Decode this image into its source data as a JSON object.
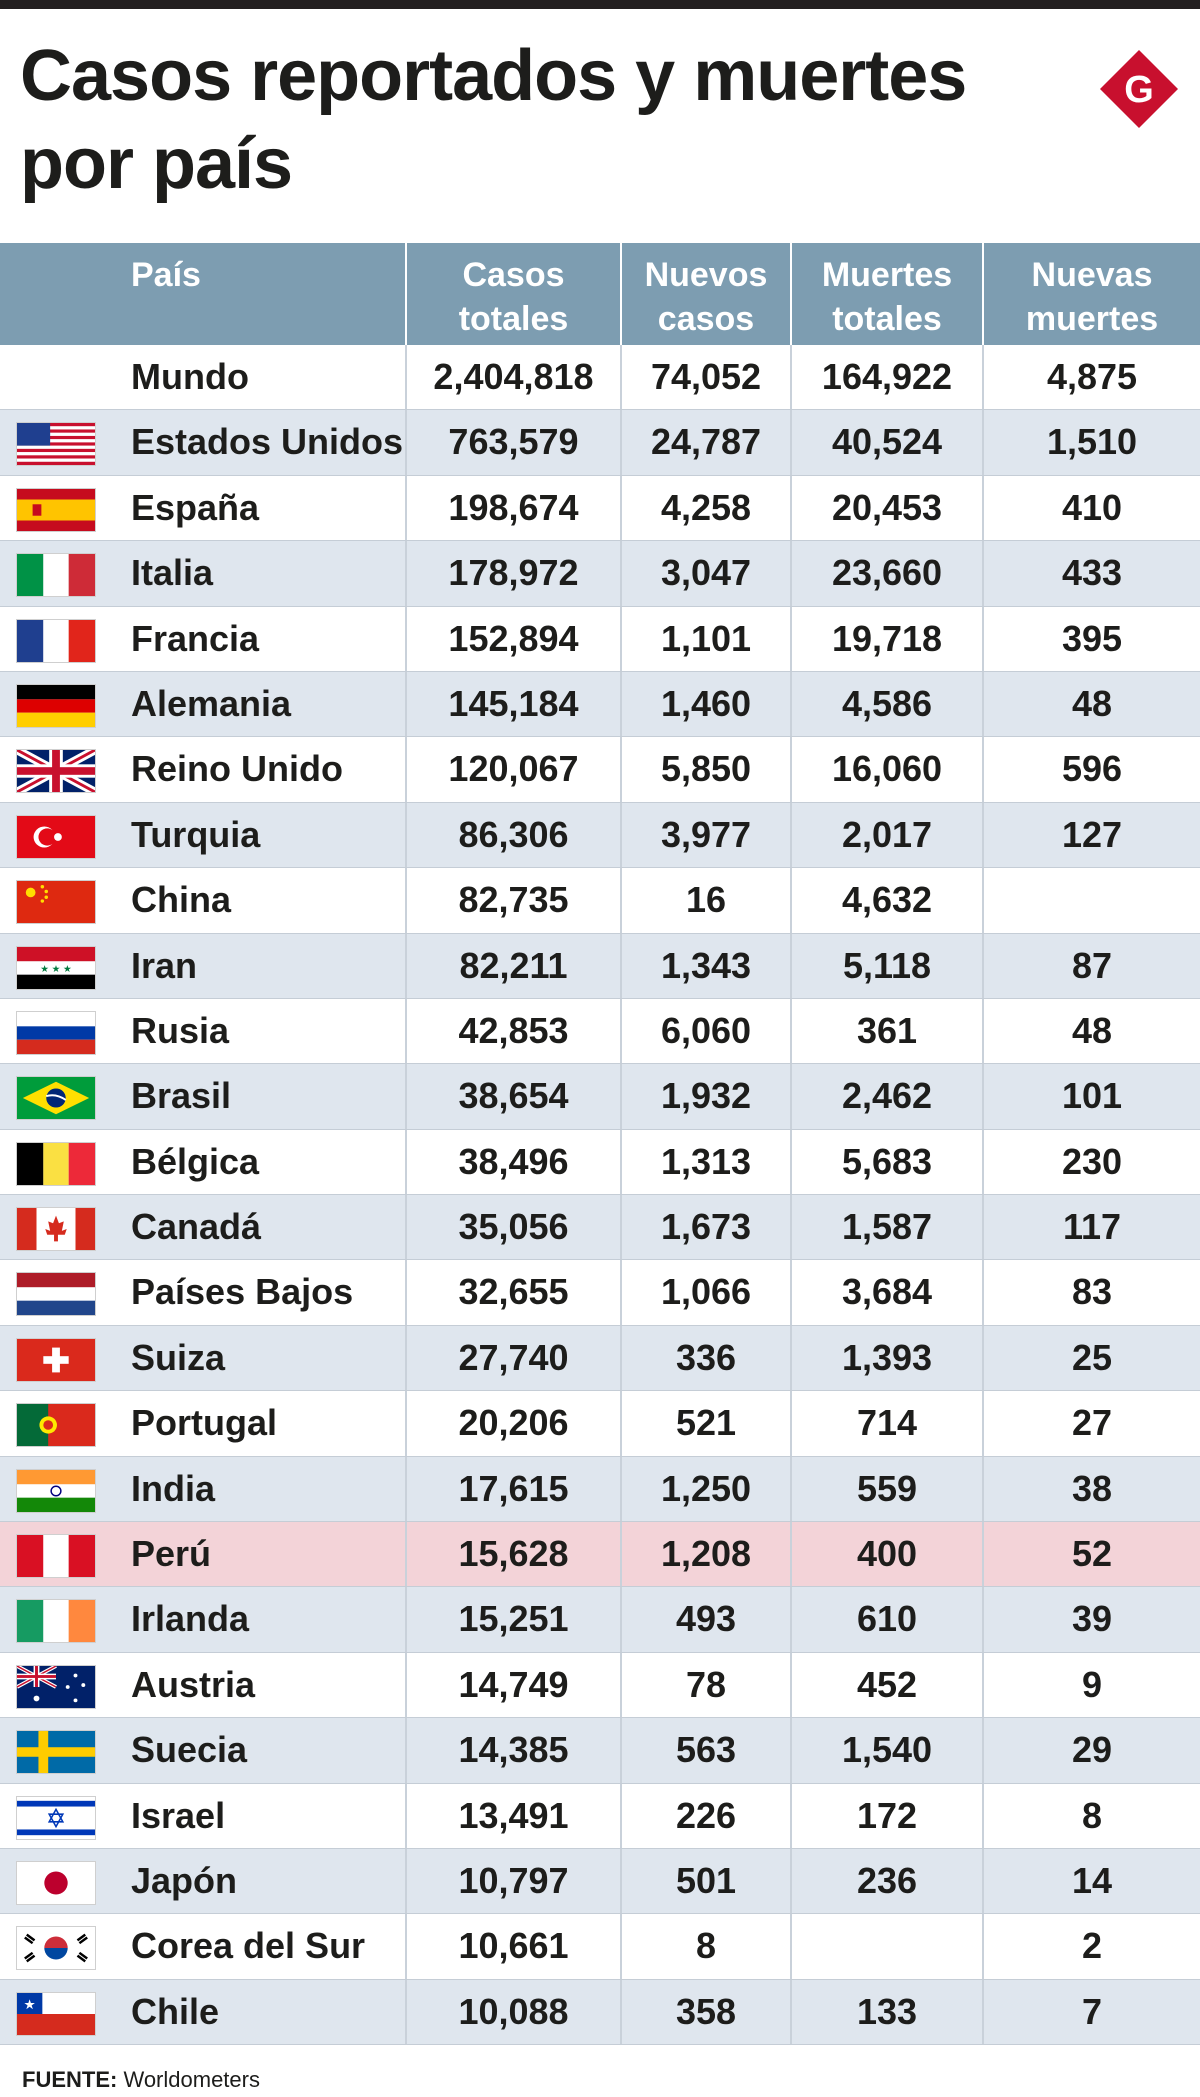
{
  "title": "Casos reportados y muertes por país",
  "logo": {
    "letter": "G",
    "color": "#c8102e"
  },
  "colors": {
    "header_bg": "#7d9db1",
    "stripe": "#dfe6ee",
    "highlight": "#f3d3d8"
  },
  "columns": {
    "country": "País",
    "total": "Casos totales",
    "new": "Nuevos casos",
    "deaths": "Muertes totales",
    "new_deaths": "Nuevas muertes"
  },
  "rows": [
    {
      "country": "Mundo",
      "flag": "none",
      "total": "2,404,818",
      "new": "74,052",
      "deaths": "164,922",
      "new_deaths": "4,875"
    },
    {
      "country": "Estados Unidos",
      "flag": "usa-flag-icon",
      "total": "763,579",
      "new": "24,787",
      "deaths": "40,524",
      "new_deaths": "1,510"
    },
    {
      "country": "España",
      "flag": "spain-flag-icon",
      "total": "198,674",
      "new": "4,258",
      "deaths": "20,453",
      "new_deaths": "410"
    },
    {
      "country": "Italia",
      "flag": "italy-flag-icon",
      "total": "178,972",
      "new": "3,047",
      "deaths": "23,660",
      "new_deaths": "433"
    },
    {
      "country": "Francia",
      "flag": "france-flag-icon",
      "total": "152,894",
      "new": "1,101",
      "deaths": "19,718",
      "new_deaths": "395"
    },
    {
      "country": "Alemania",
      "flag": "germany-flag-icon",
      "total": "145,184",
      "new": "1,460",
      "deaths": "4,586",
      "new_deaths": "48"
    },
    {
      "country": "Reino Unido",
      "flag": "uk-flag-icon",
      "total": "120,067",
      "new": "5,850",
      "deaths": "16,060",
      "new_deaths": "596"
    },
    {
      "country": "Turquia",
      "flag": "turkey-flag-icon",
      "total": "86,306",
      "new": "3,977",
      "deaths": "2,017",
      "new_deaths": "127"
    },
    {
      "country": "China",
      "flag": "china-flag-icon",
      "total": "82,735",
      "new": "16",
      "deaths": "4,632",
      "new_deaths": ""
    },
    {
      "country": "Iran",
      "flag": "iran-flag-icon",
      "total": "82,211",
      "new": "1,343",
      "deaths": "5,118",
      "new_deaths": "87"
    },
    {
      "country": "Rusia",
      "flag": "russia-flag-icon",
      "total": "42,853",
      "new": "6,060",
      "deaths": "361",
      "new_deaths": "48"
    },
    {
      "country": "Brasil",
      "flag": "brazil-flag-icon",
      "total": "38,654",
      "new": "1,932",
      "deaths": "2,462",
      "new_deaths": "101"
    },
    {
      "country": "Bélgica",
      "flag": "belgium-flag-icon",
      "total": "38,496",
      "new": "1,313",
      "deaths": "5,683",
      "new_deaths": "230"
    },
    {
      "country": "Canadá",
      "flag": "canada-flag-icon",
      "total": "35,056",
      "new": "1,673",
      "deaths": "1,587",
      "new_deaths": "117"
    },
    {
      "country": "Países Bajos",
      "flag": "netherlands-flag-icon",
      "total": "32,655",
      "new": "1,066",
      "deaths": "3,684",
      "new_deaths": "83"
    },
    {
      "country": "Suiza",
      "flag": "switzerland-flag-icon",
      "total": "27,740",
      "new": "336",
      "deaths": "1,393",
      "new_deaths": "25"
    },
    {
      "country": "Portugal",
      "flag": "portugal-flag-icon",
      "total": "20,206",
      "new": "521",
      "deaths": "714",
      "new_deaths": "27"
    },
    {
      "country": "India",
      "flag": "india-flag-icon",
      "total": "17,615",
      "new": "1,250",
      "deaths": "559",
      "new_deaths": "38"
    },
    {
      "country": "Perú",
      "flag": "peru-flag-icon",
      "total": "15,628",
      "new": "1,208",
      "deaths": "400",
      "new_deaths": "52",
      "highlight": true
    },
    {
      "country": "Irlanda",
      "flag": "ireland-flag-icon",
      "total": "15,251",
      "new": "493",
      "deaths": "610",
      "new_deaths": "39"
    },
    {
      "country": "Austria",
      "flag": "australia-flag-icon",
      "total": "14,749",
      "new": "78",
      "deaths": "452",
      "new_deaths": "9"
    },
    {
      "country": "Suecia",
      "flag": "sweden-flag-icon",
      "total": "14,385",
      "new": "563",
      "deaths": "1,540",
      "new_deaths": "29"
    },
    {
      "country": "Israel",
      "flag": "israel-flag-icon",
      "total": "13,491",
      "new": "226",
      "deaths": "172",
      "new_deaths": "8"
    },
    {
      "country": "Japón",
      "flag": "japan-flag-icon",
      "total": "10,797",
      "new": "501",
      "deaths": "236",
      "new_deaths": "14"
    },
    {
      "country": "Corea del Sur",
      "flag": "south-korea-flag-icon",
      "total": "10,661",
      "new": "8",
      "deaths": "",
      "new_deaths": "2"
    },
    {
      "country": "Chile",
      "flag": "chile-flag-icon",
      "total": "10,088",
      "new": "358",
      "deaths": "133",
      "new_deaths": "7"
    }
  ],
  "source": {
    "label": "FUENTE:",
    "value": "Worldometers"
  }
}
